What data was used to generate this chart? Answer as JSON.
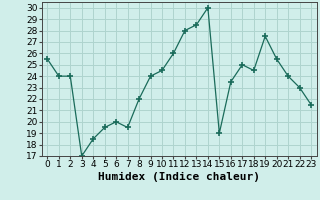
{
  "x": [
    0,
    1,
    2,
    3,
    4,
    5,
    6,
    7,
    8,
    9,
    10,
    11,
    12,
    13,
    14,
    15,
    16,
    17,
    18,
    19,
    20,
    21,
    22,
    23
  ],
  "y": [
    25.5,
    24,
    24,
    17,
    18.5,
    19.5,
    20,
    19.5,
    22,
    24,
    24.5,
    26,
    28,
    28.5,
    30,
    19,
    23.5,
    25,
    24.5,
    27.5,
    25.5,
    24,
    23,
    21.5
  ],
  "line_color": "#1a6b5a",
  "marker": "+",
  "xlabel": "Humidex (Indice chaleur)",
  "ylabel_ticks": [
    17,
    18,
    19,
    20,
    21,
    22,
    23,
    24,
    25,
    26,
    27,
    28,
    29,
    30
  ],
  "xlim": [
    -0.5,
    23.5
  ],
  "ylim": [
    17,
    30.5
  ],
  "background_color": "#d0eeea",
  "grid_color": "#aed4ce",
  "tick_fontsize": 6.5,
  "xlabel_fontsize": 8,
  "title": ""
}
